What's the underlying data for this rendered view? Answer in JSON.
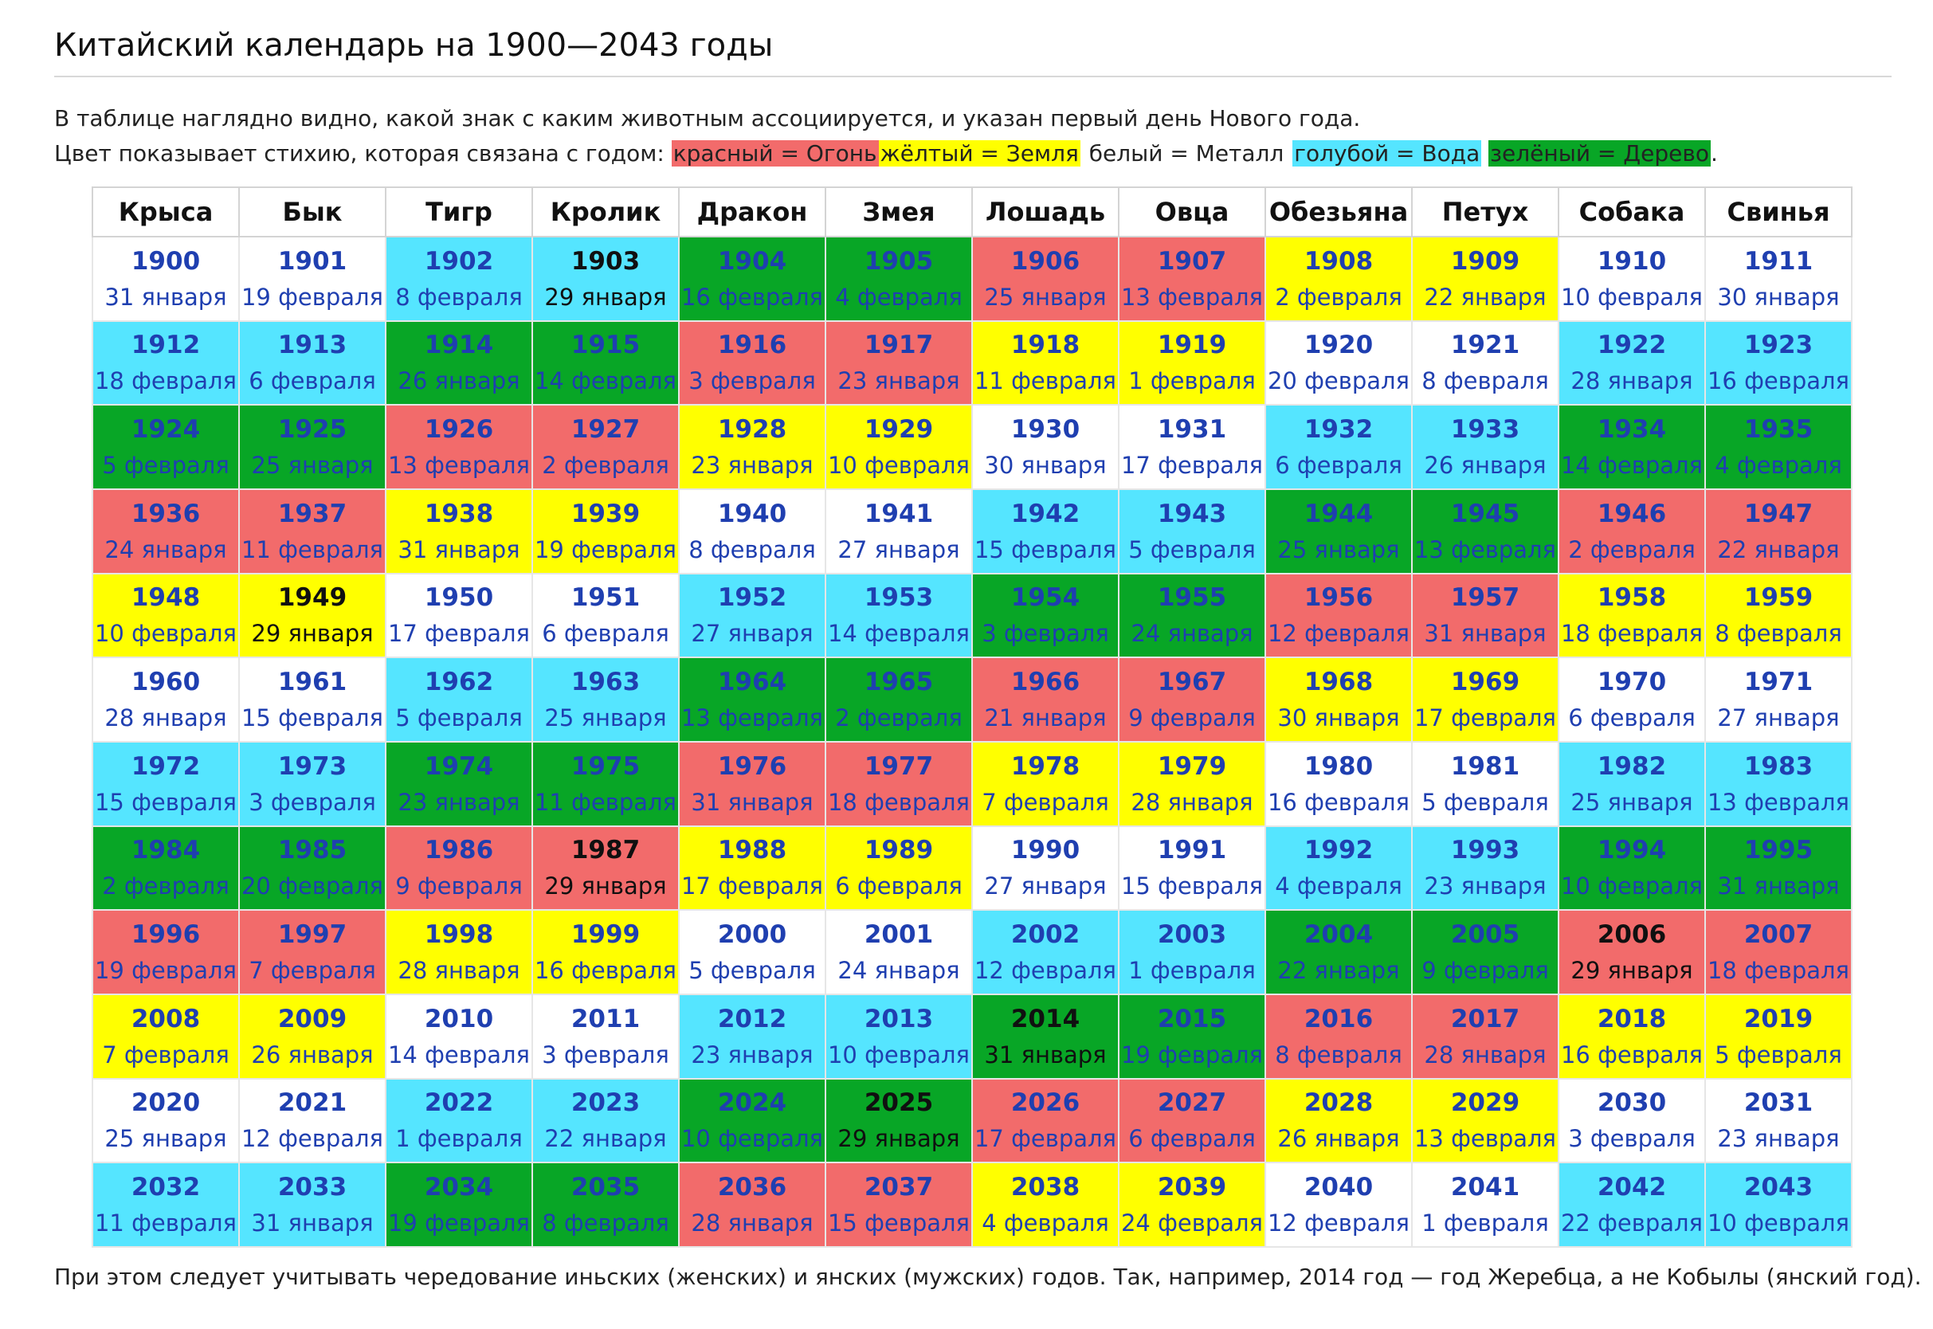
{
  "title": "Китайский календарь на 1900—2043 годы",
  "intro": {
    "line1": "В таблице наглядно видно, какой знак с каким животным ассоциируется, и указан первый день Нового года.",
    "line2_prefix": "Цвет показывает стихию, которая связана с годом:",
    "legend": [
      {
        "label": "красный = Огонь",
        "color": "#f26b6b"
      },
      {
        "label": "жёлтый = Земля",
        "color": "#ffff00"
      },
      {
        "label": "белый = Металл",
        "color": "#ffffff"
      },
      {
        "label": "голубой = Вода",
        "color": "#55e5ff"
      },
      {
        "label": "зелёный = Дерево",
        "color": "#08a626"
      }
    ],
    "line2_suffix": "."
  },
  "colors": {
    "fire": "#f26b6b",
    "earth": "#ffff00",
    "metal": "#ffffff",
    "water": "#55e5ff",
    "wood": "#08a626",
    "link": "#1f3fb0"
  },
  "headers": [
    "Крыса",
    "Бык",
    "Тигр",
    "Кролик",
    "Дракон",
    "Змея",
    "Лошадь",
    "Овца",
    "Обезьяна",
    "Петух",
    "Собака",
    "Свинья"
  ],
  "rows": [
    [
      [
        "1900",
        "31 января",
        "metal"
      ],
      [
        "1901",
        "19 февраля",
        "metal"
      ],
      [
        "1902",
        "8 февраля",
        "water"
      ],
      [
        "1903",
        "29 января",
        "water",
        true
      ],
      [
        "1904",
        "16 февраля",
        "wood"
      ],
      [
        "1905",
        "4 февраля",
        "wood"
      ],
      [
        "1906",
        "25 января",
        "fire"
      ],
      [
        "1907",
        "13 февраля",
        "fire"
      ],
      [
        "1908",
        "2 февраля",
        "earth"
      ],
      [
        "1909",
        "22 января",
        "earth"
      ],
      [
        "1910",
        "10 февраля",
        "metal"
      ],
      [
        "1911",
        "30 января",
        "metal"
      ]
    ],
    [
      [
        "1912",
        "18 февраля",
        "water"
      ],
      [
        "1913",
        "6 февраля",
        "water"
      ],
      [
        "1914",
        "26 января",
        "wood"
      ],
      [
        "1915",
        "14 февраля",
        "wood"
      ],
      [
        "1916",
        "3 февраля",
        "fire"
      ],
      [
        "1917",
        "23 января",
        "fire"
      ],
      [
        "1918",
        "11 февраля",
        "earth"
      ],
      [
        "1919",
        "1 февраля",
        "earth"
      ],
      [
        "1920",
        "20 февраля",
        "metal"
      ],
      [
        "1921",
        "8 февраля",
        "metal"
      ],
      [
        "1922",
        "28 января",
        "water"
      ],
      [
        "1923",
        "16 февраля",
        "water"
      ]
    ],
    [
      [
        "1924",
        "5 февраля",
        "wood"
      ],
      [
        "1925",
        "25 января",
        "wood"
      ],
      [
        "1926",
        "13 февраля",
        "fire"
      ],
      [
        "1927",
        "2 февраля",
        "fire"
      ],
      [
        "1928",
        "23 января",
        "earth"
      ],
      [
        "1929",
        "10 февраля",
        "earth"
      ],
      [
        "1930",
        "30 января",
        "metal"
      ],
      [
        "1931",
        "17 февраля",
        "metal"
      ],
      [
        "1932",
        "6 февраля",
        "water"
      ],
      [
        "1933",
        "26 января",
        "water"
      ],
      [
        "1934",
        "14 февраля",
        "wood"
      ],
      [
        "1935",
        "4 февраля",
        "wood"
      ]
    ],
    [
      [
        "1936",
        "24 января",
        "fire"
      ],
      [
        "1937",
        "11 февраля",
        "fire"
      ],
      [
        "1938",
        "31 января",
        "earth"
      ],
      [
        "1939",
        "19 февраля",
        "earth"
      ],
      [
        "1940",
        "8 февраля",
        "metal"
      ],
      [
        "1941",
        "27 января",
        "metal"
      ],
      [
        "1942",
        "15 февраля",
        "water"
      ],
      [
        "1943",
        "5 февраля",
        "water"
      ],
      [
        "1944",
        "25 января",
        "wood"
      ],
      [
        "1945",
        "13 февраля",
        "wood"
      ],
      [
        "1946",
        "2 февраля",
        "fire"
      ],
      [
        "1947",
        "22 января",
        "fire"
      ]
    ],
    [
      [
        "1948",
        "10 февраля",
        "earth"
      ],
      [
        "1949",
        "29 января",
        "earth",
        true
      ],
      [
        "1950",
        "17 февраля",
        "metal"
      ],
      [
        "1951",
        "6 февраля",
        "metal"
      ],
      [
        "1952",
        "27 января",
        "water"
      ],
      [
        "1953",
        "14 февраля",
        "water"
      ],
      [
        "1954",
        "3 февраля",
        "wood"
      ],
      [
        "1955",
        "24 января",
        "wood"
      ],
      [
        "1956",
        "12 февраля",
        "fire"
      ],
      [
        "1957",
        "31 января",
        "fire"
      ],
      [
        "1958",
        "18 февраля",
        "earth"
      ],
      [
        "1959",
        "8 февраля",
        "earth"
      ]
    ],
    [
      [
        "1960",
        "28 января",
        "metal"
      ],
      [
        "1961",
        "15 февраля",
        "metal"
      ],
      [
        "1962",
        "5 февраля",
        "water"
      ],
      [
        "1963",
        "25 января",
        "water"
      ],
      [
        "1964",
        "13 февраля",
        "wood"
      ],
      [
        "1965",
        "2 февраля",
        "wood"
      ],
      [
        "1966",
        "21 января",
        "fire"
      ],
      [
        "1967",
        "9 февраля",
        "fire"
      ],
      [
        "1968",
        "30 января",
        "earth"
      ],
      [
        "1969",
        "17 февраля",
        "earth"
      ],
      [
        "1970",
        "6 февраля",
        "metal"
      ],
      [
        "1971",
        "27 января",
        "metal"
      ]
    ],
    [
      [
        "1972",
        "15 февраля",
        "water"
      ],
      [
        "1973",
        "3 февраля",
        "water"
      ],
      [
        "1974",
        "23 января",
        "wood"
      ],
      [
        "1975",
        "11 февраля",
        "wood"
      ],
      [
        "1976",
        "31 января",
        "fire"
      ],
      [
        "1977",
        "18 февраля",
        "fire"
      ],
      [
        "1978",
        "7 февраля",
        "earth"
      ],
      [
        "1979",
        "28 января",
        "earth"
      ],
      [
        "1980",
        "16 февраля",
        "metal"
      ],
      [
        "1981",
        "5 февраля",
        "metal"
      ],
      [
        "1982",
        "25 января",
        "water"
      ],
      [
        "1983",
        "13 февраля",
        "water"
      ]
    ],
    [
      [
        "1984",
        "2 февраля",
        "wood"
      ],
      [
        "1985",
        "20 февраля",
        "wood"
      ],
      [
        "1986",
        "9 февраля",
        "fire"
      ],
      [
        "1987",
        "29 января",
        "fire",
        true
      ],
      [
        "1988",
        "17 февраля",
        "earth"
      ],
      [
        "1989",
        "6 февраля",
        "earth"
      ],
      [
        "1990",
        "27 января",
        "metal"
      ],
      [
        "1991",
        "15 февраля",
        "metal"
      ],
      [
        "1992",
        "4 февраля",
        "water"
      ],
      [
        "1993",
        "23 января",
        "water"
      ],
      [
        "1994",
        "10 февраля",
        "wood"
      ],
      [
        "1995",
        "31 января",
        "wood"
      ]
    ],
    [
      [
        "1996",
        "19 февраля",
        "fire"
      ],
      [
        "1997",
        "7 февраля",
        "fire"
      ],
      [
        "1998",
        "28 января",
        "earth"
      ],
      [
        "1999",
        "16 февраля",
        "earth"
      ],
      [
        "2000",
        "5 февраля",
        "metal"
      ],
      [
        "2001",
        "24 января",
        "metal"
      ],
      [
        "2002",
        "12 февраля",
        "water"
      ],
      [
        "2003",
        "1 февраля",
        "water"
      ],
      [
        "2004",
        "22 января",
        "wood"
      ],
      [
        "2005",
        "9 февраля",
        "wood"
      ],
      [
        "2006",
        "29 января",
        "fire",
        true
      ],
      [
        "2007",
        "18 февраля",
        "fire"
      ]
    ],
    [
      [
        "2008",
        "7 февраля",
        "earth"
      ],
      [
        "2009",
        "26 января",
        "earth"
      ],
      [
        "2010",
        "14 февраля",
        "metal"
      ],
      [
        "2011",
        "3 февраля",
        "metal"
      ],
      [
        "2012",
        "23 января",
        "water"
      ],
      [
        "2013",
        "10 февраля",
        "water"
      ],
      [
        "2014",
        "31 января",
        "wood",
        true
      ],
      [
        "2015",
        "19 февраля",
        "wood"
      ],
      [
        "2016",
        "8 февраля",
        "fire"
      ],
      [
        "2017",
        "28 января",
        "fire"
      ],
      [
        "2018",
        "16 февраля",
        "earth"
      ],
      [
        "2019",
        "5 февраля",
        "earth"
      ]
    ],
    [
      [
        "2020",
        "25 января",
        "metal"
      ],
      [
        "2021",
        "12 февраля",
        "metal"
      ],
      [
        "2022",
        "1 февраля",
        "water"
      ],
      [
        "2023",
        "22 января",
        "water"
      ],
      [
        "2024",
        "10 февраля",
        "wood"
      ],
      [
        "2025",
        "29 января",
        "wood",
        true
      ],
      [
        "2026",
        "17 февраля",
        "fire"
      ],
      [
        "2027",
        "6 февраля",
        "fire"
      ],
      [
        "2028",
        "26 января",
        "earth"
      ],
      [
        "2029",
        "13 февраля",
        "earth"
      ],
      [
        "2030",
        "3 февраля",
        "metal"
      ],
      [
        "2031",
        "23 января",
        "metal"
      ]
    ],
    [
      [
        "2032",
        "11 февраля",
        "water"
      ],
      [
        "2033",
        "31 января",
        "water"
      ],
      [
        "2034",
        "19 февраля",
        "wood"
      ],
      [
        "2035",
        "8 февраля",
        "wood"
      ],
      [
        "2036",
        "28 января",
        "fire"
      ],
      [
        "2037",
        "15 февраля",
        "fire"
      ],
      [
        "2038",
        "4 февраля",
        "earth"
      ],
      [
        "2039",
        "24 февраля",
        "earth"
      ],
      [
        "2040",
        "12 февраля",
        "metal"
      ],
      [
        "2041",
        "1 февраля",
        "metal"
      ],
      [
        "2042",
        "22 февраля",
        "water"
      ],
      [
        "2043",
        "10 февраля",
        "water"
      ]
    ]
  ],
  "footer": "При этом следует учитывать чередование иньских (женских) и янских (мужских) годов. Так, например, 2014 год — год Жеребца, а не Кобылы (янский год)."
}
